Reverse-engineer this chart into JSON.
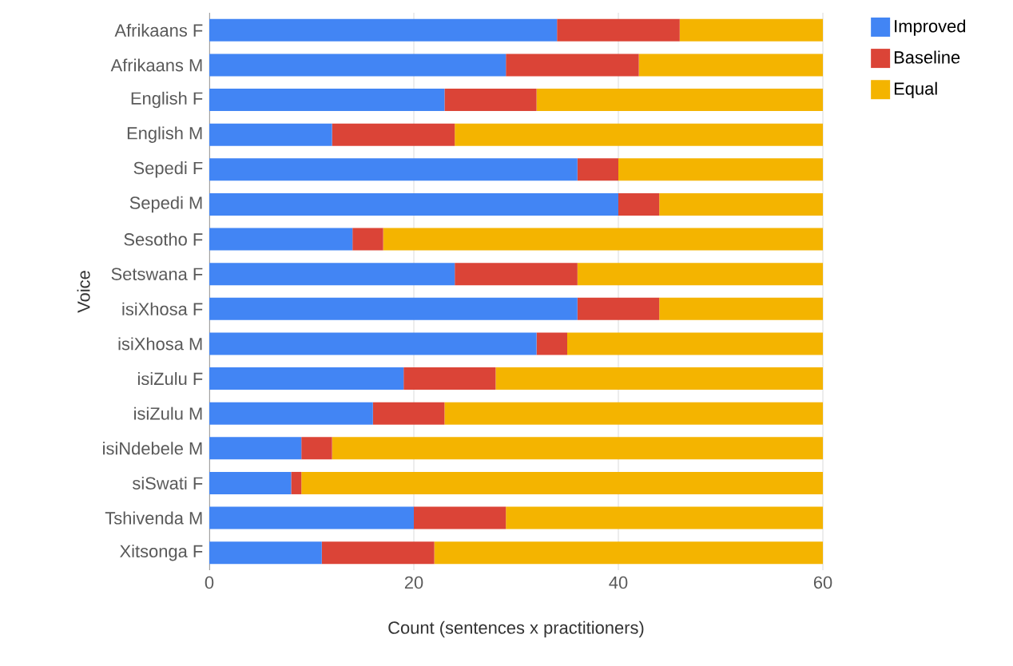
{
  "chart_data": {
    "type": "bar",
    "orientation": "horizontal",
    "stacked": true,
    "categories": [
      "Afrikaans F",
      "Afrikaans M",
      "English F",
      "English M",
      "Sepedi F",
      "Sepedi M",
      "Sesotho F",
      "Setswana F",
      "isiXhosa F",
      "isiXhosa M",
      "isiZulu F",
      "isiZulu M",
      "isiNdebele M",
      "siSwati F",
      "Tshivenda M",
      "Xitsonga F"
    ],
    "series": [
      {
        "name": "Improved",
        "color": "#4285f4",
        "values": [
          34,
          29,
          23,
          12,
          36,
          40,
          14,
          24,
          36,
          32,
          19,
          16,
          9,
          8,
          20,
          11
        ]
      },
      {
        "name": "Baseline",
        "color": "#db4437",
        "values": [
          12,
          13,
          9,
          12,
          4,
          4,
          3,
          12,
          8,
          3,
          9,
          7,
          3,
          1,
          9,
          11
        ]
      },
      {
        "name": "Equal",
        "color": "#f4b400",
        "values": [
          14,
          18,
          28,
          36,
          20,
          16,
          43,
          24,
          16,
          25,
          32,
          37,
          48,
          51,
          31,
          38
        ]
      }
    ],
    "xlim": [
      0,
      60
    ],
    "xticks": [
      0,
      20,
      40,
      60
    ],
    "xlabel": "Count (sentences x practitioners)",
    "ylabel": "Voice",
    "grid": "x",
    "legend": "top right"
  }
}
